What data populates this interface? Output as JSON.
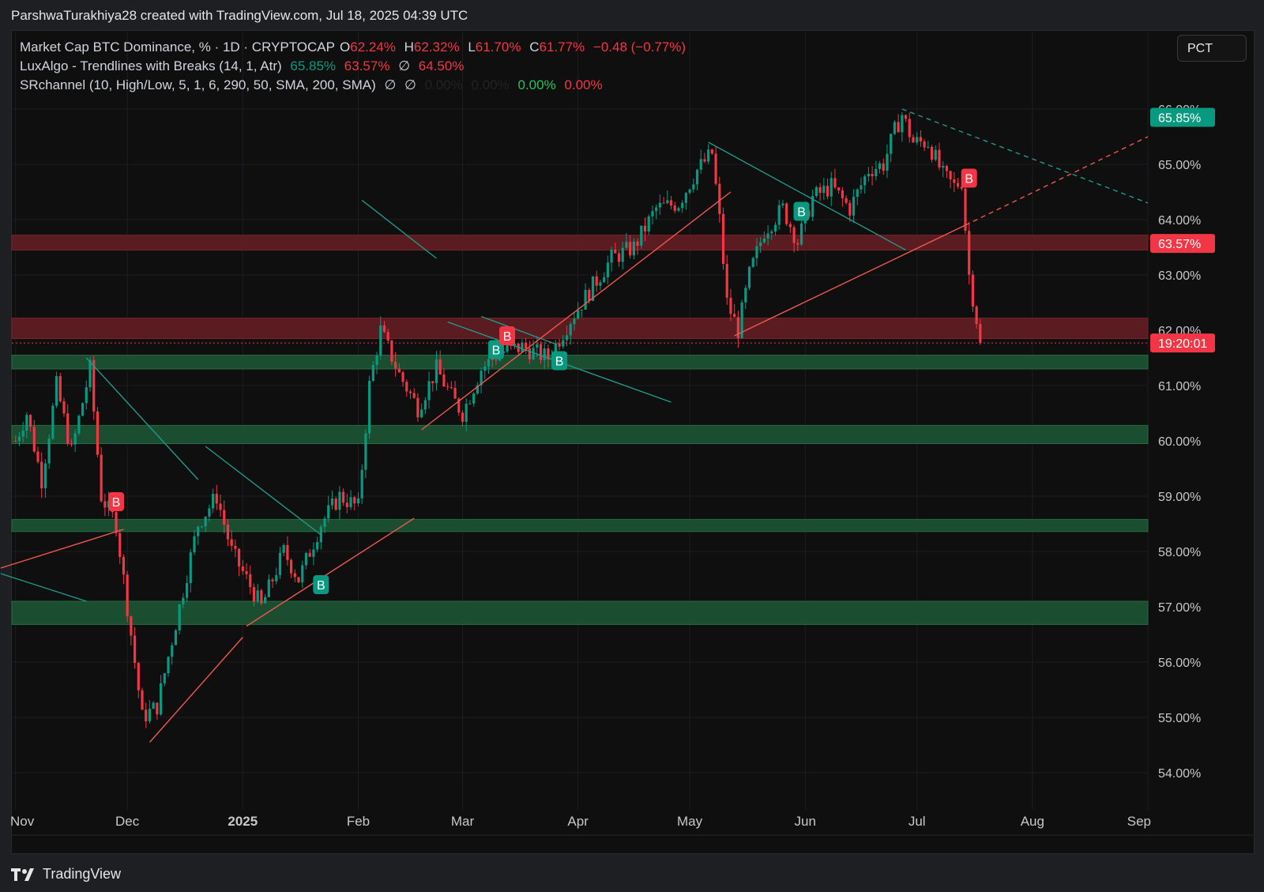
{
  "header": {
    "attribution": "ParshwaTurakhiya28 created with TradingView.com, Jul 18, 2025 04:39 UTC"
  },
  "legend": {
    "main": {
      "name": "Market Cap BTC Dominance, % · 1D · CRYPTOCAP",
      "o_label": "O",
      "o_value": "62.24%",
      "h_label": "H",
      "h_value": "62.32%",
      "l_label": "L",
      "l_value": "61.70%",
      "c_label": "C",
      "c_value": "61.77%",
      "change": "−0.48 (−0.77%)"
    },
    "luxalgo": {
      "name": "LuxAlgo - Trendlines with Breaks (14, 1, Atr)",
      "v1": "65.85%",
      "v2": "63.57%",
      "v3": "∅",
      "v4": "64.50%"
    },
    "srchannel": {
      "name": "SRchannel (10, High/Low, 5, 1, 6, 290, 50, SMA, 200, SMA)",
      "v1": "∅",
      "v2": "∅",
      "v3": "0.00%",
      "v4": "0.00%",
      "v5": "0.00%",
      "v6": "0.00%"
    }
  },
  "toolbar": {
    "scale_button": "PCT"
  },
  "footer": {
    "logo_text": "TradingView"
  },
  "colors": {
    "up": "#089981",
    "down": "#f23645",
    "background": "#0f0f0f",
    "resistance_zone": "#5a1c20",
    "support_zone": "#1b4d30",
    "trend_teal": "#1f9a8a",
    "trend_red": "#f0574f"
  },
  "chart_data": {
    "type": "candlestick",
    "title": "Market Cap BTC Dominance, % · 1D · CRYPTOCAP",
    "x_ticks": [
      "Nov",
      "Dec",
      "2025",
      "Feb",
      "Mar",
      "Apr",
      "May",
      "Jun",
      "Jul",
      "Aug",
      "Sep"
    ],
    "y_ticks": [
      "54.00%",
      "55.00%",
      "56.00%",
      "57.00%",
      "58.00%",
      "59.00%",
      "60.00%",
      "61.00%",
      "62.00%",
      "63.00%",
      "64.00%",
      "65.00%",
      "66.00%"
    ],
    "ylim": [
      53.5,
      66.5
    ],
    "grid": true,
    "price_key_points": [
      {
        "date": "2024-11-01",
        "value": 60.0
      },
      {
        "date": "2024-11-04",
        "value": 60.5
      },
      {
        "date": "2024-11-08",
        "value": 59.3
      },
      {
        "date": "2024-11-12",
        "value": 61.0
      },
      {
        "date": "2024-11-16",
        "value": 59.8
      },
      {
        "date": "2024-11-21",
        "value": 61.3
      },
      {
        "date": "2024-11-24",
        "value": 59.0
      },
      {
        "date": "2024-11-28",
        "value": 58.5
      },
      {
        "date": "2024-12-05",
        "value": 55.0
      },
      {
        "date": "2024-12-09",
        "value": 55.2
      },
      {
        "date": "2024-12-15",
        "value": 57.0
      },
      {
        "date": "2024-12-20",
        "value": 58.5
      },
      {
        "date": "2024-12-25",
        "value": 59.0
      },
      {
        "date": "2024-12-29",
        "value": 58.0
      },
      {
        "date": "2025-01-06",
        "value": 57.0
      },
      {
        "date": "2025-01-12",
        "value": 58.0
      },
      {
        "date": "2025-01-16",
        "value": 57.5
      },
      {
        "date": "2025-01-22",
        "value": 58.5
      },
      {
        "date": "2025-01-27",
        "value": 59.0
      },
      {
        "date": "2025-02-01",
        "value": 58.8
      },
      {
        "date": "2025-02-04",
        "value": 61.0
      },
      {
        "date": "2025-02-07",
        "value": 62.0
      },
      {
        "date": "2025-02-12",
        "value": 61.2
      },
      {
        "date": "2025-02-17",
        "value": 60.6
      },
      {
        "date": "2025-02-22",
        "value": 61.3
      },
      {
        "date": "2025-02-26",
        "value": 60.8
      },
      {
        "date": "2025-03-01",
        "value": 60.5
      },
      {
        "date": "2025-03-06",
        "value": 61.3
      },
      {
        "date": "2025-03-11",
        "value": 61.6
      },
      {
        "date": "2025-03-17",
        "value": 61.7
      },
      {
        "date": "2025-03-24",
        "value": 61.5
      },
      {
        "date": "2025-03-30",
        "value": 62.2
      },
      {
        "date": "2025-04-05",
        "value": 62.8
      },
      {
        "date": "2025-04-10",
        "value": 63.3
      },
      {
        "date": "2025-04-16",
        "value": 63.5
      },
      {
        "date": "2025-04-22",
        "value": 64.2
      },
      {
        "date": "2025-04-28",
        "value": 64.3
      },
      {
        "date": "2025-05-03",
        "value": 64.9
      },
      {
        "date": "2025-05-07",
        "value": 65.2
      },
      {
        "date": "2025-05-09",
        "value": 64.0
      },
      {
        "date": "2025-05-11",
        "value": 62.5
      },
      {
        "date": "2025-05-14",
        "value": 62.0
      },
      {
        "date": "2025-05-17",
        "value": 63.0
      },
      {
        "date": "2025-05-21",
        "value": 63.8
      },
      {
        "date": "2025-05-26",
        "value": 64.2
      },
      {
        "date": "2025-05-30",
        "value": 63.6
      },
      {
        "date": "2025-06-03",
        "value": 64.4
      },
      {
        "date": "2025-06-08",
        "value": 64.6
      },
      {
        "date": "2025-06-13",
        "value": 64.2
      },
      {
        "date": "2025-06-18",
        "value": 64.9
      },
      {
        "date": "2025-06-22",
        "value": 65.0
      },
      {
        "date": "2025-06-25",
        "value": 65.6
      },
      {
        "date": "2025-06-27",
        "value": 65.9
      },
      {
        "date": "2025-06-30",
        "value": 65.4
      },
      {
        "date": "2025-07-04",
        "value": 65.4
      },
      {
        "date": "2025-07-08",
        "value": 64.8
      },
      {
        "date": "2025-07-11",
        "value": 64.6
      },
      {
        "date": "2025-07-13",
        "value": 64.7
      },
      {
        "date": "2025-07-15",
        "value": 63.0
      },
      {
        "date": "2025-07-17",
        "value": 62.2
      },
      {
        "date": "2025-07-18",
        "value": 61.77
      }
    ],
    "support_resistance_zones": [
      {
        "kind": "resistance",
        "low": 63.45,
        "high": 63.72
      },
      {
        "kind": "resistance",
        "low": 61.85,
        "high": 62.22
      },
      {
        "kind": "support",
        "low": 61.3,
        "high": 61.55
      },
      {
        "kind": "support",
        "low": 59.95,
        "high": 60.28
      },
      {
        "kind": "support",
        "low": 58.36,
        "high": 58.58
      },
      {
        "kind": "support",
        "low": 56.68,
        "high": 57.1
      }
    ],
    "trendlines": [
      {
        "color": "teal",
        "from": [
          "2024-11-20",
          61.5
        ],
        "to": [
          "2024-12-20",
          59.3
        ]
      },
      {
        "color": "teal",
        "from": [
          "2024-12-22",
          59.9
        ],
        "to": [
          "2025-01-22",
          58.3
        ]
      },
      {
        "color": "teal",
        "from": [
          "2025-02-02",
          64.35
        ],
        "to": [
          "2025-02-22",
          63.3
        ]
      },
      {
        "color": "teal",
        "from": [
          "2025-02-25",
          62.15
        ],
        "to": [
          "2025-04-26",
          60.7
        ]
      },
      {
        "color": "teal",
        "from": [
          "2025-03-06",
          62.25
        ],
        "to": [
          "2025-03-26",
          61.75
        ]
      },
      {
        "color": "teal",
        "from": [
          "2025-05-06",
          65.4
        ],
        "to": [
          "2025-06-28",
          63.45
        ]
      },
      {
        "color": "teal",
        "style": "dashed",
        "from": [
          "2025-06-27",
          66.0
        ],
        "to": [
          "2025-09-01",
          64.3
        ]
      },
      {
        "color": "red",
        "from": [
          "2024-12-07",
          54.55
        ],
        "to": [
          "2025-01-01",
          56.45
        ]
      },
      {
        "color": "red",
        "from": [
          "2025-01-02",
          56.65
        ],
        "to": [
          "2025-02-16",
          58.6
        ]
      },
      {
        "color": "red",
        "from": [
          "2025-02-18",
          60.2
        ],
        "to": [
          "2025-05-12",
          64.5
        ]
      },
      {
        "color": "red",
        "from": [
          "2025-05-13",
          61.9
        ],
        "to": [
          "2025-07-14",
          63.9
        ]
      },
      {
        "color": "red",
        "style": "dashed",
        "from": [
          "2025-07-14",
          63.9
        ],
        "to": [
          "2025-09-01",
          65.5
        ]
      },
      {
        "color": "red",
        "from": [
          "2024-10-28",
          57.7
        ],
        "to": [
          "2024-11-30",
          58.4
        ]
      },
      {
        "color": "teal",
        "from": [
          "2024-10-28",
          57.6
        ],
        "to": [
          "2024-11-20",
          57.1
        ]
      }
    ],
    "break_markers": [
      {
        "label": "B",
        "type": "bearish",
        "date": "2024-11-28",
        "value": 58.9
      },
      {
        "label": "B",
        "type": "bullish",
        "date": "2025-01-22",
        "value": 57.4
      },
      {
        "label": "B",
        "type": "bullish",
        "date": "2025-03-10",
        "value": 61.65
      },
      {
        "label": "B",
        "type": "bearish",
        "date": "2025-03-13",
        "value": 61.9
      },
      {
        "label": "B",
        "type": "bullish",
        "date": "2025-03-27",
        "value": 61.45
      },
      {
        "label": "B",
        "type": "bullish",
        "date": "2025-05-31",
        "value": 64.15
      },
      {
        "label": "B",
        "type": "bearish",
        "date": "2025-07-15",
        "value": 64.75
      }
    ],
    "price_axis_labels": [
      {
        "text": "65.85%",
        "value": 65.85,
        "color": "#089981"
      },
      {
        "text": "63.57%",
        "value": 63.57,
        "color": "#f23645"
      },
      {
        "text": "19:20:01",
        "value": 61.77,
        "color": "#f23645"
      }
    ],
    "current_price": 61.77
  }
}
